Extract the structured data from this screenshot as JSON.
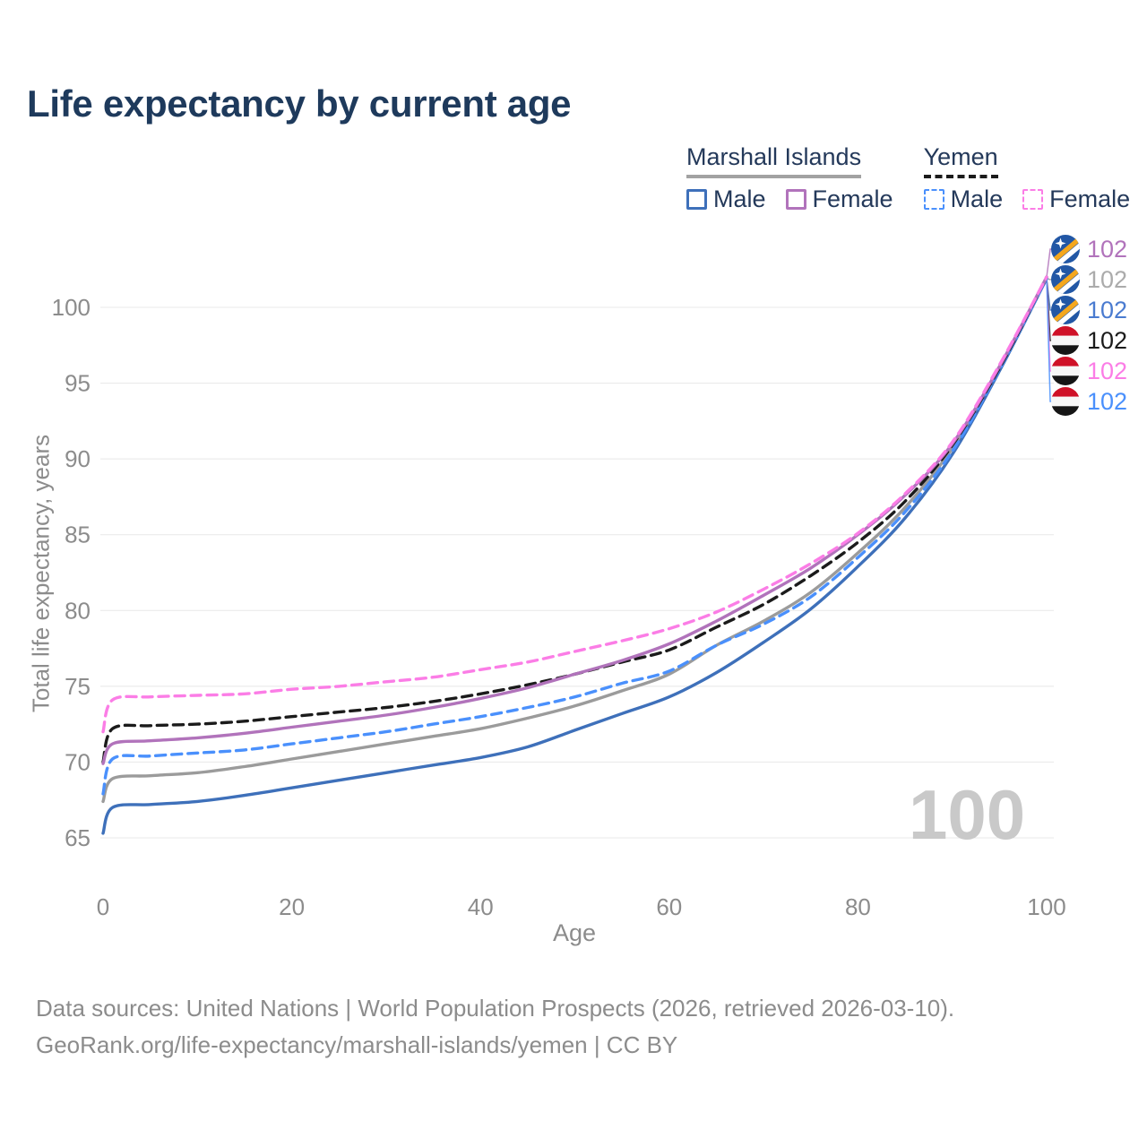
{
  "title": "Life expectancy by current age",
  "legend": {
    "groups": [
      {
        "label": "Marshall Islands",
        "underline_color": "#a2a2a2",
        "items": [
          "Male",
          "Female"
        ]
      },
      {
        "label": "Yemen",
        "underline_color": "#1b1b1b",
        "items": [
          "Male",
          "Female"
        ]
      }
    ]
  },
  "chart_data": {
    "type": "line",
    "title": "Life expectancy by current age",
    "xlabel": "Age",
    "ylabel": "Total life expectancy, years",
    "xlim": [
      0,
      100
    ],
    "ylim": [
      65,
      103
    ],
    "x_ticks": [
      0,
      20,
      40,
      60,
      80,
      100
    ],
    "y_ticks": [
      65,
      70,
      75,
      80,
      85,
      90,
      95,
      100
    ],
    "grid": "horizontal-only",
    "legend_position": "top-right",
    "age_counter_watermark": "100",
    "x": [
      0,
      1,
      5,
      10,
      15,
      20,
      25,
      30,
      35,
      40,
      45,
      50,
      55,
      60,
      65,
      70,
      75,
      80,
      85,
      90,
      95,
      100
    ],
    "series": [
      {
        "name": "Marshall Islands Female",
        "country": "Marshall Islands",
        "sex": "Female",
        "style": "solid",
        "color": "#b173bb",
        "label_color": "#b173bb",
        "flag": "marshall-islands",
        "end_label": "102",
        "values": [
          69.9,
          71.2,
          71.4,
          71.6,
          71.9,
          72.3,
          72.7,
          73.1,
          73.6,
          74.2,
          74.9,
          75.8,
          76.7,
          77.8,
          79.3,
          81.0,
          82.8,
          85.0,
          87.6,
          91.0,
          96.1,
          102.0
        ]
      },
      {
        "name": "Marshall Islands Both sexes",
        "country": "Marshall Islands",
        "sex": "Both",
        "style": "solid",
        "color": "#9b9b9b",
        "label_color": "#ababab",
        "flag": "marshall-islands",
        "end_label": "102",
        "values": [
          67.4,
          68.9,
          69.1,
          69.3,
          69.7,
          70.2,
          70.7,
          71.2,
          71.7,
          72.2,
          72.9,
          73.7,
          74.7,
          75.8,
          77.7,
          79.3,
          81.2,
          83.8,
          86.8,
          90.7,
          96.0,
          101.9
        ]
      },
      {
        "name": "Marshall Islands Male",
        "country": "Marshall Islands",
        "sex": "Male",
        "style": "solid",
        "color": "#3e70ba",
        "label_color": "#4a7bd0",
        "flag": "marshall-islands",
        "end_label": "102",
        "values": [
          65.3,
          67.0,
          67.2,
          67.4,
          67.8,
          68.3,
          68.8,
          69.3,
          69.8,
          70.3,
          71.0,
          72.1,
          73.2,
          74.3,
          75.9,
          77.9,
          80.1,
          82.9,
          86.1,
          90.3,
          95.8,
          101.9
        ]
      },
      {
        "name": "Yemen Both sexes",
        "country": "Yemen",
        "sex": "Both",
        "style": "dashed",
        "color": "#1b1b1b",
        "label_color": "#1b1b1b",
        "flag": "yemen",
        "end_label": "102",
        "values": [
          70.0,
          72.2,
          72.4,
          72.5,
          72.7,
          73.0,
          73.3,
          73.6,
          74.0,
          74.5,
          75.1,
          75.8,
          76.6,
          77.4,
          78.9,
          80.4,
          82.3,
          84.5,
          87.2,
          90.9,
          96.0,
          102.0
        ]
      },
      {
        "name": "Yemen Female",
        "country": "Yemen",
        "sex": "Female",
        "style": "dashed",
        "color": "#fb7de6",
        "label_color": "#fb7de6",
        "flag": "yemen",
        "end_label": "102",
        "values": [
          72.0,
          74.1,
          74.3,
          74.4,
          74.5,
          74.8,
          75.0,
          75.3,
          75.6,
          76.1,
          76.6,
          77.3,
          78.0,
          78.8,
          79.9,
          81.4,
          83.1,
          85.1,
          87.7,
          91.1,
          96.2,
          102.0
        ]
      },
      {
        "name": "Yemen Male",
        "country": "Yemen",
        "sex": "Male",
        "style": "dashed",
        "color": "#4a90fc",
        "label_color": "#4a90fc",
        "flag": "yemen",
        "end_label": "102",
        "values": [
          67.9,
          70.2,
          70.4,
          70.6,
          70.8,
          71.2,
          71.6,
          72.0,
          72.5,
          73.0,
          73.6,
          74.3,
          75.2,
          76.0,
          77.7,
          79.1,
          80.9,
          83.5,
          86.5,
          90.5,
          95.9,
          101.9
        ]
      }
    ]
  },
  "footer": {
    "line1": "Data sources: United Nations | World Population Prospects (2026, retrieved 2026-03-10).",
    "line2": "GeoRank.org/life-expectancy/marshall-islands/yemen | CC BY"
  },
  "colors": {
    "title_text": "#1e3a5c",
    "legend_text": "#24395a",
    "tick_text": "#8c8c8c",
    "gridline": "#e8e8e8",
    "watermark": "#c9c9c9",
    "flag_mh_blue": "#2257a5",
    "flag_mh_orange": "#f4a71d",
    "flag_ye_red": "#cf1127",
    "flag_ye_white": "#f7f7f7",
    "flag_ye_black": "#151515"
  }
}
